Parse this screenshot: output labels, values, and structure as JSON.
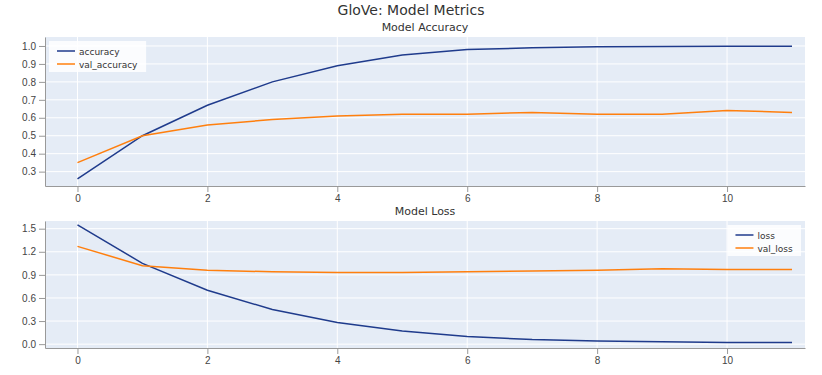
{
  "title": "GloVe: Model Metrics",
  "chart_data": [
    {
      "type": "line",
      "title": "Model Accuracy",
      "x": [
        0,
        1,
        2,
        3,
        4,
        5,
        6,
        7,
        8,
        9,
        10,
        11
      ],
      "series": [
        {
          "name": "accuracy",
          "color": "#1f3b8c",
          "values": [
            0.26,
            0.5,
            0.67,
            0.8,
            0.89,
            0.95,
            0.98,
            0.99,
            0.995,
            0.997,
            0.998,
            0.999
          ]
        },
        {
          "name": "val_accuracy",
          "color": "#ff7f0e",
          "values": [
            0.35,
            0.5,
            0.56,
            0.59,
            0.61,
            0.62,
            0.62,
            0.63,
            0.62,
            0.62,
            0.64,
            0.63
          ]
        }
      ],
      "xlim": [
        -0.5,
        11.2
      ],
      "xticks": [
        0,
        2,
        4,
        6,
        8,
        10
      ],
      "ylim": [
        0.22,
        1.05
      ],
      "yticks": [
        0.3,
        0.4,
        0.5,
        0.6,
        0.7,
        0.8,
        0.9,
        {
          "value": 1,
          "label": "1.0"
        }
      ],
      "grid": true,
      "legend": "top-left"
    },
    {
      "type": "line",
      "title": "Model Loss",
      "x": [
        0,
        1,
        2,
        3,
        4,
        5,
        6,
        7,
        8,
        9,
        10,
        11
      ],
      "series": [
        {
          "name": "loss",
          "color": "#1f3b8c",
          "values": [
            1.55,
            1.05,
            0.7,
            0.45,
            0.28,
            0.17,
            0.1,
            0.06,
            0.04,
            0.03,
            0.02,
            0.02
          ]
        },
        {
          "name": "val_loss",
          "color": "#ff7f0e",
          "values": [
            1.27,
            1.02,
            0.96,
            0.94,
            0.93,
            0.93,
            0.94,
            0.95,
            0.96,
            0.98,
            0.97,
            0.97
          ]
        }
      ],
      "xlim": [
        -0.5,
        11.2
      ],
      "xticks": [
        0,
        2,
        4,
        6,
        8,
        10
      ],
      "ylim": [
        -0.05,
        1.6
      ],
      "yticks": [
        {
          "value": 0,
          "label": "0.0"
        },
        0.3,
        0.6,
        0.9,
        1.2,
        1.5
      ],
      "grid": true,
      "legend": "top-right"
    }
  ]
}
